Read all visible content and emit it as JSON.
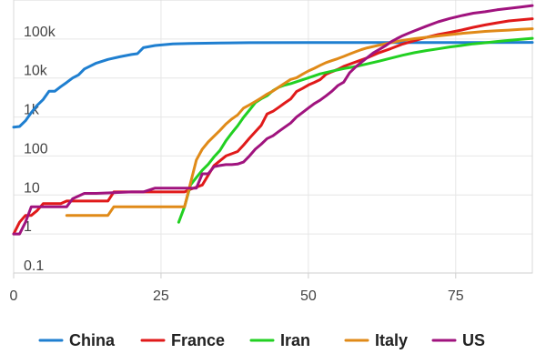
{
  "chart_data": {
    "type": "line",
    "title": "",
    "xlabel": "",
    "ylabel": "",
    "y_scale": "log",
    "xlim": [
      0,
      88
    ],
    "ylim": [
      0.1,
      1000000
    ],
    "grid": true,
    "legend_position": "bottom",
    "x_ticks": [
      0,
      25,
      50,
      75
    ],
    "x_tick_labels": [
      "0",
      "25",
      "50",
      "75"
    ],
    "y_ticks": [
      0.1,
      1,
      10,
      100,
      1000,
      10000,
      100000
    ],
    "y_tick_labels": [
      "0.1",
      "1",
      "10",
      "100",
      "1k",
      "10k",
      "100k"
    ],
    "series": [
      {
        "name": "China",
        "color": "#1f7fd0",
        "points": [
          [
            0,
            550
          ],
          [
            1,
            570
          ],
          [
            2,
            800
          ],
          [
            3,
            1300
          ],
          [
            4,
            2000
          ],
          [
            5,
            2800
          ],
          [
            6,
            4600
          ],
          [
            7,
            4600
          ],
          [
            8,
            6000
          ],
          [
            9,
            7700
          ],
          [
            10,
            10000
          ],
          [
            11,
            12000
          ],
          [
            12,
            17000
          ],
          [
            14,
            24000
          ],
          [
            16,
            30000
          ],
          [
            18,
            35000
          ],
          [
            20,
            40000
          ],
          [
            21,
            42000
          ],
          [
            22,
            60000
          ],
          [
            24,
            68000
          ],
          [
            27,
            75000
          ],
          [
            30,
            77000
          ],
          [
            35,
            79000
          ],
          [
            40,
            80500
          ],
          [
            50,
            81000
          ],
          [
            60,
            81200
          ],
          [
            75,
            81500
          ],
          [
            88,
            82000
          ]
        ]
      },
      {
        "name": "France",
        "color": "#e01a1a",
        "points": [
          [
            0,
            1
          ],
          [
            1,
            2
          ],
          [
            2,
            3
          ],
          [
            3,
            3
          ],
          [
            4,
            4
          ],
          [
            5,
            6
          ],
          [
            8,
            6
          ],
          [
            9,
            7
          ],
          [
            12,
            7
          ],
          [
            16,
            7
          ],
          [
            17,
            12
          ],
          [
            20,
            12
          ],
          [
            23,
            12
          ],
          [
            29,
            12
          ],
          [
            30,
            14
          ],
          [
            32,
            18
          ],
          [
            34,
            57
          ],
          [
            36,
            100
          ],
          [
            38,
            130
          ],
          [
            39,
            190
          ],
          [
            40,
            285
          ],
          [
            41,
            420
          ],
          [
            42,
            610
          ],
          [
            43,
            1200
          ],
          [
            44,
            1400
          ],
          [
            45,
            1780
          ],
          [
            46,
            2300
          ],
          [
            47,
            2900
          ],
          [
            48,
            4500
          ],
          [
            49,
            5400
          ],
          [
            50,
            6600
          ],
          [
            51,
            7700
          ],
          [
            52,
            9100
          ],
          [
            53,
            12500
          ],
          [
            54,
            14500
          ],
          [
            55,
            16700
          ],
          [
            56,
            19900
          ],
          [
            58,
            25600
          ],
          [
            60,
            32900
          ],
          [
            62,
            44500
          ],
          [
            64,
            56900
          ],
          [
            66,
            74400
          ],
          [
            68,
            90800
          ],
          [
            70,
            110000
          ],
          [
            72,
            130000
          ],
          [
            74,
            148000
          ],
          [
            76,
            170000
          ],
          [
            78,
            200000
          ],
          [
            80,
            230000
          ],
          [
            82,
            260000
          ],
          [
            84,
            290000
          ],
          [
            88,
            330000
          ]
        ]
      },
      {
        "name": "Iran",
        "color": "#22d022",
        "points": [
          [
            28,
            2
          ],
          [
            29,
            5
          ],
          [
            30,
            18
          ],
          [
            31,
            28
          ],
          [
            32,
            43
          ],
          [
            33,
            61
          ],
          [
            34,
            95
          ],
          [
            35,
            139
          ],
          [
            36,
            245
          ],
          [
            37,
            388
          ],
          [
            38,
            593
          ],
          [
            39,
            978
          ],
          [
            40,
            1501
          ],
          [
            41,
            2336
          ],
          [
            42,
            2922
          ],
          [
            43,
            3513
          ],
          [
            44,
            4747
          ],
          [
            45,
            5823
          ],
          [
            46,
            6566
          ],
          [
            47,
            7161
          ],
          [
            48,
            8042
          ],
          [
            49,
            9000
          ],
          [
            50,
            10075
          ],
          [
            52,
            12729
          ],
          [
            54,
            14991
          ],
          [
            56,
            17361
          ],
          [
            58,
            19644
          ],
          [
            60,
            23049
          ],
          [
            62,
            27017
          ],
          [
            64,
            32332
          ],
          [
            66,
            38309
          ],
          [
            68,
            44605
          ],
          [
            70,
            50468
          ],
          [
            72,
            55743
          ],
          [
            74,
            62589
          ],
          [
            76,
            68192
          ],
          [
            78,
            74877
          ],
          [
            80,
            80100
          ],
          [
            82,
            86500
          ],
          [
            84,
            92000
          ],
          [
            88,
            104000
          ]
        ]
      },
      {
        "name": "Italy",
        "color": "#e08a18",
        "points": [
          [
            9,
            3
          ],
          [
            10,
            3
          ],
          [
            15,
            3
          ],
          [
            16,
            3
          ],
          [
            17,
            5
          ],
          [
            20,
            5
          ],
          [
            25,
            5
          ],
          [
            28,
            5
          ],
          [
            29,
            5
          ],
          [
            30,
            20
          ],
          [
            31,
            79
          ],
          [
            32,
            150
          ],
          [
            33,
            229
          ],
          [
            34,
            322
          ],
          [
            35,
            453
          ],
          [
            36,
            655
          ],
          [
            37,
            888
          ],
          [
            38,
            1128
          ],
          [
            39,
            1694
          ],
          [
            40,
            2036
          ],
          [
            41,
            2502
          ],
          [
            42,
            3089
          ],
          [
            43,
            3858
          ],
          [
            44,
            4636
          ],
          [
            45,
            5883
          ],
          [
            46,
            7375
          ],
          [
            47,
            9172
          ],
          [
            48,
            10149
          ],
          [
            49,
            12462
          ],
          [
            50,
            15113
          ],
          [
            51,
            17660
          ],
          [
            52,
            21157
          ],
          [
            53,
            24747
          ],
          [
            54,
            27980
          ],
          [
            55,
            31506
          ],
          [
            56,
            35713
          ],
          [
            57,
            41035
          ],
          [
            58,
            47021
          ],
          [
            59,
            53578
          ],
          [
            60,
            59138
          ],
          [
            62,
            69176
          ],
          [
            64,
            80589
          ],
          [
            66,
            92472
          ],
          [
            68,
            101739
          ],
          [
            70,
            110574
          ],
          [
            72,
            119827
          ],
          [
            74,
            128948
          ],
          [
            76,
            139422
          ],
          [
            78,
            147577
          ],
          [
            80,
            156363
          ],
          [
            82,
            162488
          ],
          [
            84,
            168941
          ],
          [
            86,
            175925
          ],
          [
            88,
            183000
          ]
        ]
      },
      {
        "name": "US",
        "color": "#a0137e",
        "points": [
          [
            0,
            1
          ],
          [
            1,
            1
          ],
          [
            2,
            2
          ],
          [
            3,
            5
          ],
          [
            5,
            5
          ],
          [
            8,
            5
          ],
          [
            9,
            5
          ],
          [
            10,
            8
          ],
          [
            12,
            11
          ],
          [
            14,
            11
          ],
          [
            20,
            12
          ],
          [
            22,
            12
          ],
          [
            24,
            15
          ],
          [
            29,
            15
          ],
          [
            30,
            15
          ],
          [
            31,
            15
          ],
          [
            32,
            35
          ],
          [
            33,
            35
          ],
          [
            34,
            53
          ],
          [
            35,
            57
          ],
          [
            36,
            60
          ],
          [
            37,
            60
          ],
          [
            38,
            62
          ],
          [
            39,
            70
          ],
          [
            40,
            100
          ],
          [
            41,
            150
          ],
          [
            42,
            200
          ],
          [
            43,
            280
          ],
          [
            44,
            330
          ],
          [
            45,
            430
          ],
          [
            46,
            550
          ],
          [
            47,
            700
          ],
          [
            48,
            1000
          ],
          [
            49,
            1300
          ],
          [
            50,
            1700
          ],
          [
            51,
            2200
          ],
          [
            52,
            2700
          ],
          [
            53,
            3500
          ],
          [
            54,
            4600
          ],
          [
            55,
            6400
          ],
          [
            56,
            7800
          ],
          [
            57,
            13700
          ],
          [
            58,
            19100
          ],
          [
            59,
            25500
          ],
          [
            60,
            33300
          ],
          [
            61,
            43800
          ],
          [
            62,
            53700
          ],
          [
            63,
            65800
          ],
          [
            64,
            83800
          ],
          [
            65,
            101700
          ],
          [
            66,
            121500
          ],
          [
            67,
            140900
          ],
          [
            68,
            161800
          ],
          [
            70,
            213000
          ],
          [
            72,
            275000
          ],
          [
            74,
            336000
          ],
          [
            76,
            396000
          ],
          [
            78,
            459000
          ],
          [
            80,
            501000
          ],
          [
            82,
            560000
          ],
          [
            84,
            610000
          ],
          [
            86,
            660000
          ],
          [
            88,
            720000
          ]
        ]
      }
    ]
  }
}
